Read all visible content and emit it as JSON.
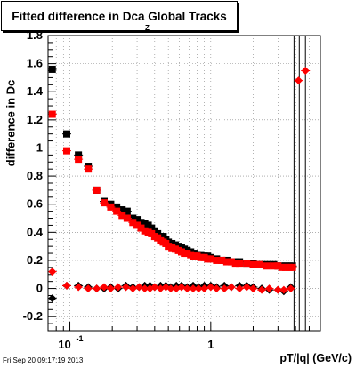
{
  "header": {
    "title_main": "Fitted difference in Dca Global Tracks",
    "title_subscript": "Z"
  },
  "footer": {
    "timestamp": "Fri Sep 20 09:17:19 2013"
  },
  "colors": {
    "series_black": "#000000",
    "series_red": "#ff0000",
    "grid": "#808080"
  },
  "chart_data": {
    "type": "scatter",
    "title": "Fitted difference in Dca Global Tracks",
    "xlabel": "pT/|q| (GeV/c)",
    "ylabel": "difference in Dc",
    "xscale": "log",
    "xlim": [
      0.07,
      6.0
    ],
    "ylim": [
      -0.3,
      1.8
    ],
    "grid": true,
    "x_tick_labels": [
      "10^-1",
      "1"
    ],
    "y_tick_labels": [
      "-0.2",
      "0",
      "0.2",
      "0.4",
      "0.6",
      "0.8",
      "1",
      "1.2",
      "1.4",
      "1.6",
      "1.8"
    ],
    "series": [
      {
        "marker": "square",
        "color": "#000000",
        "x": [
          0.075,
          0.095,
          0.115,
          0.135,
          0.155,
          0.175,
          0.195,
          0.215,
          0.235,
          0.255,
          0.28,
          0.3,
          0.32,
          0.34,
          0.36,
          0.38,
          0.4,
          0.42,
          0.44,
          0.46,
          0.48,
          0.5,
          0.53,
          0.56,
          0.59,
          0.62,
          0.65,
          0.68,
          0.72,
          0.76,
          0.8,
          0.85,
          0.9,
          0.95,
          1.0,
          1.1,
          1.2,
          1.3,
          1.4,
          1.5,
          1.6,
          1.8,
          2.0,
          2.2,
          2.5,
          2.8,
          3.0,
          3.2,
          3.4,
          3.6,
          3.8
        ],
        "y": [
          1.56,
          1.1,
          0.95,
          0.87,
          0.7,
          0.62,
          0.6,
          0.58,
          0.56,
          0.55,
          0.5,
          0.49,
          0.47,
          0.46,
          0.45,
          0.43,
          0.41,
          0.39,
          0.37,
          0.37,
          0.35,
          0.33,
          0.32,
          0.31,
          0.3,
          0.29,
          0.28,
          0.27,
          0.26,
          0.25,
          0.24,
          0.24,
          0.23,
          0.23,
          0.22,
          0.21,
          0.2,
          0.2,
          0.19,
          0.19,
          0.19,
          0.18,
          0.18,
          0.17,
          0.17,
          0.17,
          0.16,
          0.16,
          0.16,
          0.16,
          0.16
        ]
      },
      {
        "marker": "square",
        "color": "#ff0000",
        "x": [
          0.075,
          0.095,
          0.115,
          0.135,
          0.155,
          0.175,
          0.195,
          0.215,
          0.235,
          0.255,
          0.28,
          0.3,
          0.32,
          0.34,
          0.36,
          0.38,
          0.4,
          0.42,
          0.44,
          0.46,
          0.48,
          0.5,
          0.53,
          0.56,
          0.59,
          0.62,
          0.65,
          0.68,
          0.72,
          0.76,
          0.8,
          0.85,
          0.9,
          0.95,
          1.0,
          1.1,
          1.2,
          1.3,
          1.4,
          1.5,
          1.6,
          1.8,
          2.0,
          2.2,
          2.5,
          2.8,
          3.0,
          3.2,
          3.4,
          3.6,
          3.8
        ],
        "y": [
          1.24,
          0.98,
          0.92,
          0.85,
          0.7,
          0.61,
          0.58,
          0.55,
          0.52,
          0.5,
          0.47,
          0.45,
          0.43,
          0.41,
          0.4,
          0.39,
          0.37,
          0.36,
          0.34,
          0.33,
          0.32,
          0.3,
          0.29,
          0.28,
          0.27,
          0.26,
          0.25,
          0.25,
          0.24,
          0.23,
          0.23,
          0.22,
          0.22,
          0.21,
          0.21,
          0.2,
          0.2,
          0.19,
          0.19,
          0.18,
          0.18,
          0.18,
          0.17,
          0.17,
          0.16,
          0.16,
          0.16,
          0.15,
          0.15,
          0.15,
          0.15
        ]
      },
      {
        "marker": "diamond",
        "color": "#000000",
        "x": [
          0.075,
          0.095,
          0.115,
          0.135,
          0.155,
          0.175,
          0.195,
          0.22,
          0.25,
          0.28,
          0.31,
          0.34,
          0.37,
          0.4,
          0.44,
          0.48,
          0.52,
          0.57,
          0.62,
          0.68,
          0.75,
          0.82,
          0.9,
          1.0,
          1.1,
          1.25,
          1.4,
          1.6,
          1.8,
          2.0,
          2.3,
          2.6,
          3.0,
          3.3,
          3.7
        ],
        "y": [
          -0.07,
          0.02,
          0.02,
          0.01,
          0.0,
          0.0,
          0.01,
          0.0,
          0.02,
          0.01,
          0.01,
          0.02,
          0.02,
          0.01,
          0.02,
          0.02,
          0.01,
          0.02,
          0.02,
          0.01,
          0.02,
          0.01,
          0.02,
          0.02,
          0.01,
          0.02,
          0.01,
          0.02,
          0.02,
          0.01,
          0.0,
          -0.01,
          -0.01,
          -0.02,
          0.01
        ]
      },
      {
        "marker": "diamond",
        "color": "#ff0000",
        "x": [
          0.075,
          0.095,
          0.115,
          0.135,
          0.155,
          0.175,
          0.195,
          0.22,
          0.25,
          0.28,
          0.31,
          0.34,
          0.37,
          0.4,
          0.44,
          0.48,
          0.52,
          0.57,
          0.62,
          0.68,
          0.75,
          0.82,
          0.9,
          1.0,
          1.1,
          1.25,
          1.4,
          1.6,
          1.8,
          2.0,
          2.3,
          2.6,
          3.0,
          3.3,
          3.7,
          4.2,
          4.7
        ],
        "y": [
          0.12,
          0.02,
          0.01,
          0.0,
          0.0,
          0.01,
          0.0,
          0.01,
          0.01,
          0.0,
          0.01,
          0.0,
          0.0,
          0.01,
          0.0,
          0.01,
          0.0,
          0.0,
          0.01,
          0.0,
          0.0,
          0.0,
          0.0,
          0.01,
          0.0,
          0.0,
          0.01,
          0.0,
          0.01,
          0.0,
          -0.01,
          0.0,
          -0.01,
          -0.01,
          0.0,
          1.48,
          1.55
        ]
      }
    ]
  }
}
